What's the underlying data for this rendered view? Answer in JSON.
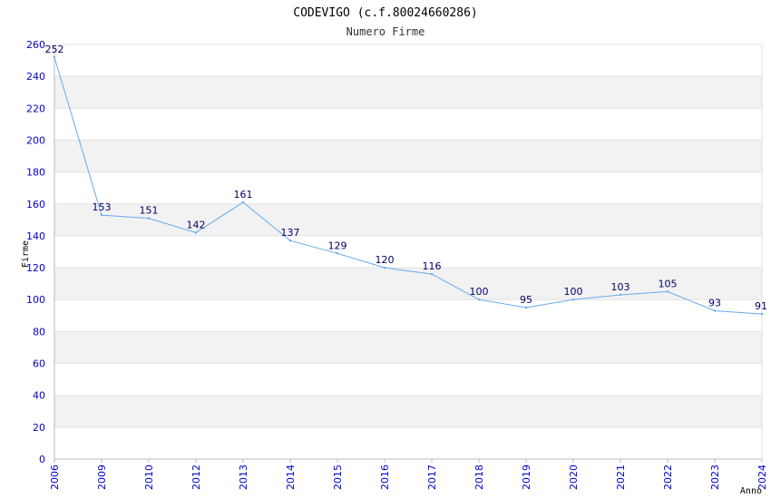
{
  "chart_data": {
    "type": "line",
    "title": "CODEVIGO (c.f.80024660286)",
    "subtitle": "Numero Firme",
    "xlabel": "Anno",
    "ylabel": "Firme",
    "categories": [
      "2006",
      "2009",
      "2010",
      "2012",
      "2013",
      "2014",
      "2015",
      "2016",
      "2017",
      "2018",
      "2019",
      "2020",
      "2021",
      "2022",
      "2023",
      "2024"
    ],
    "series": [
      {
        "values": [
          252,
          153,
          151,
          142,
          161,
          137,
          129,
          120,
          116,
          100,
          95,
          100,
          103,
          105,
          93,
          91
        ]
      }
    ],
    "ylim": [
      0,
      260
    ],
    "yticks": [
      0,
      20,
      40,
      60,
      80,
      100,
      120,
      140,
      160,
      180,
      200,
      220,
      240,
      260
    ],
    "grid": true,
    "band_colors": [
      "#ffffff",
      "#f2f2f2"
    ],
    "line_color": "#66aaee",
    "tick_color": "#0000cc",
    "label_color": "#000066"
  }
}
